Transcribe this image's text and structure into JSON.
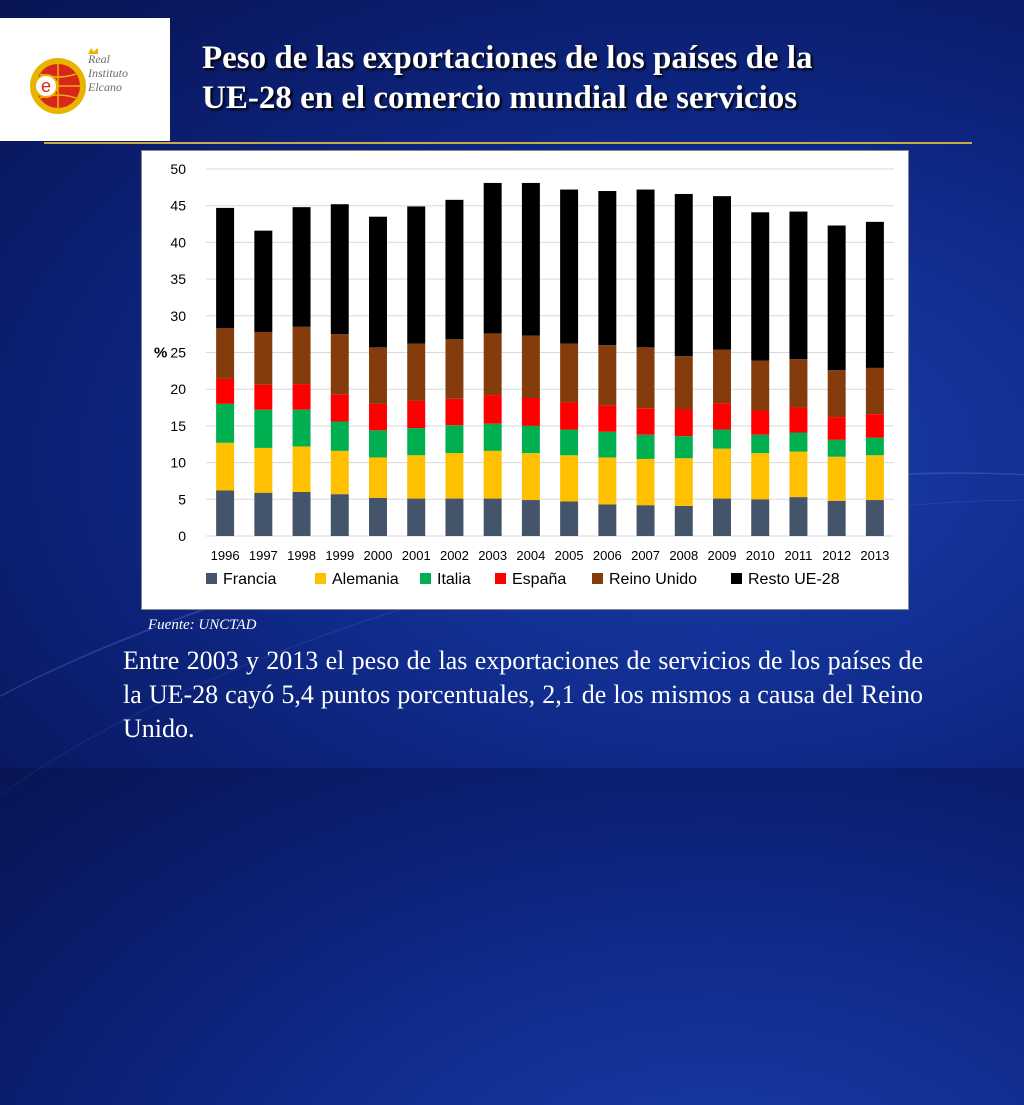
{
  "logo": {
    "letter": "e",
    "lines": [
      "Real",
      "Instituto",
      "Elcano"
    ]
  },
  "title": {
    "line1": "Peso de las exportaciones de los países de la",
    "line2": "UE-28  en el comercio mundial de servicios"
  },
  "source": {
    "label": "Fuente:",
    "value": "UNCTAD"
  },
  "caption": "Entre 2003 y 2013 el peso de las exportaciones de servicios de los países de la UE-28 cayó 5,4 puntos porcentuales, 2,1 de los mismos a causa del Reino Unido.",
  "chart_data": {
    "type": "bar",
    "stacked": true,
    "title": "",
    "xlabel": "",
    "ylabel": "%",
    "ylim": [
      0,
      50
    ],
    "yticks": [
      0,
      5,
      10,
      15,
      20,
      25,
      30,
      35,
      40,
      45,
      50
    ],
    "grid": true,
    "legend_position": "bottom",
    "categories": [
      "1996",
      "1997",
      "1998",
      "1999",
      "2000",
      "2001",
      "2002",
      "2003",
      "2004",
      "2005",
      "2006",
      "2007",
      "2008",
      "2009",
      "2010",
      "2011",
      "2012",
      "2013"
    ],
    "series": [
      {
        "name": "Francia",
        "color": "#44546a",
        "values": [
          6.2,
          5.9,
          6.0,
          5.7,
          5.2,
          5.1,
          5.1,
          5.1,
          4.9,
          4.7,
          4.3,
          4.2,
          4.1,
          5.1,
          5.0,
          5.3,
          4.8,
          4.9
        ]
      },
      {
        "name": "Alemania",
        "color": "#ffc000",
        "values": [
          6.5,
          6.1,
          6.2,
          5.9,
          5.5,
          5.9,
          6.2,
          6.5,
          6.4,
          6.3,
          6.4,
          6.3,
          6.5,
          6.8,
          6.3,
          6.2,
          6.0,
          6.1
        ]
      },
      {
        "name": "Italia",
        "color": "#00b050",
        "values": [
          5.3,
          5.2,
          5.0,
          4.0,
          3.7,
          3.7,
          3.8,
          3.7,
          3.7,
          3.5,
          3.5,
          3.3,
          3.0,
          2.6,
          2.5,
          2.6,
          2.3,
          2.4
        ]
      },
      {
        "name": "España",
        "color": "#ff0000",
        "values": [
          3.4,
          3.4,
          3.5,
          3.7,
          3.6,
          3.7,
          3.6,
          3.9,
          3.8,
          3.7,
          3.6,
          3.6,
          3.7,
          3.6,
          3.3,
          3.4,
          3.1,
          3.2
        ]
      },
      {
        "name": "Reino Unido",
        "color": "#843c0c",
        "values": [
          6.9,
          7.2,
          7.8,
          8.2,
          7.7,
          7.8,
          8.1,
          8.4,
          8.5,
          8.0,
          8.2,
          8.3,
          7.2,
          7.3,
          6.8,
          6.6,
          6.4,
          6.3
        ]
      },
      {
        "name": "Resto UE-28",
        "color": "#000000",
        "values": [
          16.4,
          13.8,
          16.3,
          17.7,
          17.8,
          18.7,
          19.0,
          20.5,
          20.8,
          21.0,
          21.0,
          21.5,
          22.1,
          20.9,
          20.2,
          20.1,
          19.7,
          19.9
        ]
      }
    ]
  }
}
